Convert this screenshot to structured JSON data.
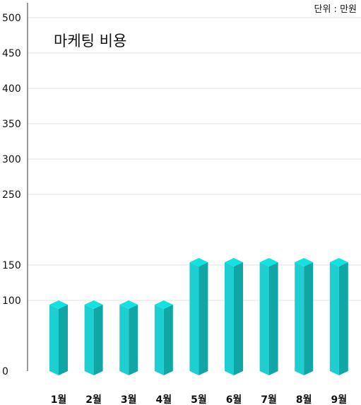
{
  "unit_note": "단위 : 만원",
  "colors": {
    "bar_front": "#1ECFD2",
    "bar_side": "#0FA6A5",
    "bar_top": "#13E2E1",
    "grid": "#e2e2e2",
    "axis": "#333333",
    "text": "#111111"
  },
  "chart_data": {
    "type": "bar",
    "title": "마케팅 비용",
    "categories": [
      "1월",
      "2월",
      "3월",
      "4월",
      "5월",
      "6월",
      "7월",
      "8월",
      "9월"
    ],
    "values": [
      100,
      100,
      100,
      100,
      160,
      160,
      160,
      160,
      160
    ],
    "ylim": [
      0,
      500
    ],
    "yticks": [
      0,
      100,
      150,
      250,
      300,
      350,
      400,
      450,
      500
    ],
    "xlabel": "",
    "ylabel": "",
    "grid": true,
    "legend": "none"
  }
}
